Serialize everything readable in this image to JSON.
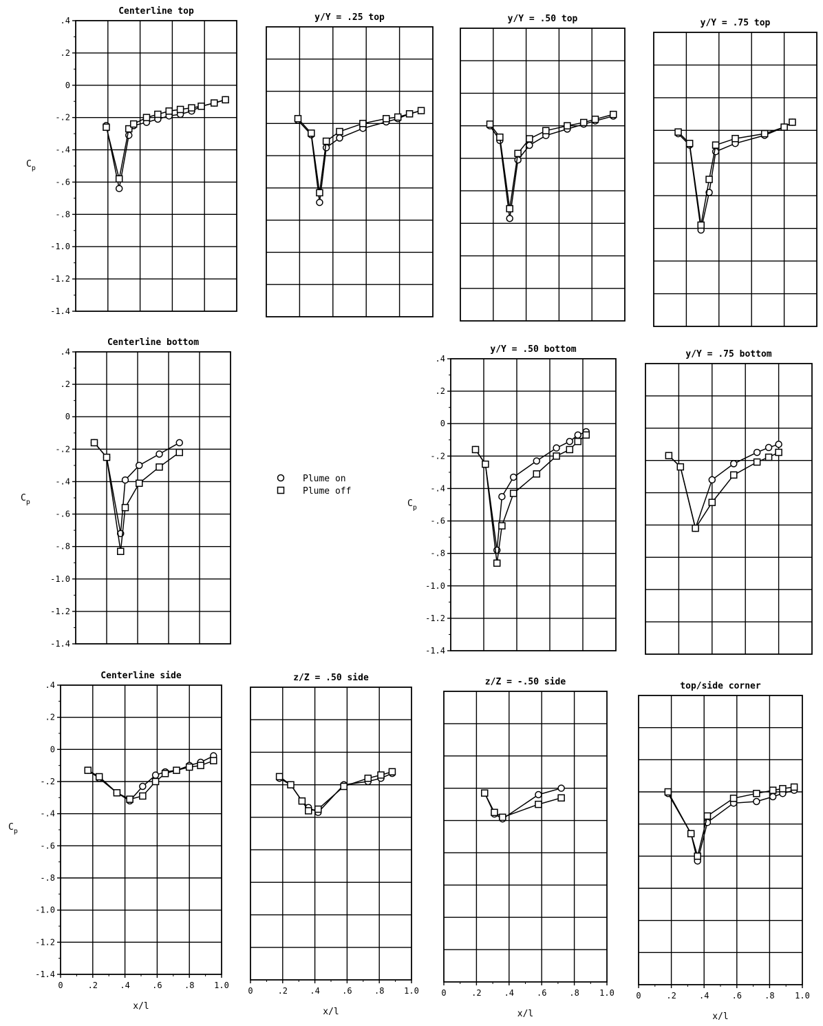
{
  "legend": [
    {
      "marker": "circle",
      "label": "Plume on"
    },
    {
      "marker": "square",
      "label": "Plume off"
    }
  ],
  "ylabel": "C_p",
  "xlabel": "x/l",
  "y_ticks": [
    ".4",
    ".2",
    "0",
    "-.2",
    "-.4",
    "-.6",
    "-.8",
    "-1.0",
    "-1.2",
    "-1.4"
  ],
  "x_ticks": [
    "0",
    ".2",
    ".4",
    ".6",
    ".8",
    "1.0"
  ],
  "chart_data": [
    {
      "type": "line",
      "title": "Centerline top",
      "xlim": [
        0,
        1
      ],
      "ylim": [
        -1.4,
        0.4
      ],
      "series": [
        {
          "name": "Plume on",
          "x": [
            0.19,
            0.27,
            0.33,
            0.36,
            0.44,
            0.51,
            0.58,
            0.65,
            0.72,
            0.78,
            0.86,
            0.93
          ],
          "y": [
            -0.25,
            -0.64,
            -0.31,
            -0.25,
            -0.23,
            -0.21,
            -0.19,
            -0.18,
            -0.16,
            -0.13,
            -0.11,
            -0.09
          ]
        },
        {
          "name": "Plume off",
          "x": [
            0.19,
            0.27,
            0.33,
            0.36,
            0.44,
            0.51,
            0.58,
            0.65,
            0.72,
            0.78,
            0.86,
            0.93
          ],
          "y": [
            -0.26,
            -0.58,
            -0.27,
            -0.24,
            -0.2,
            -0.18,
            -0.16,
            -0.15,
            -0.14,
            -0.13,
            -0.11,
            -0.09
          ]
        }
      ]
    },
    {
      "type": "line",
      "title": "y/Y = .25 top",
      "xlim": [
        0,
        1
      ],
      "ylim": [
        -1.4,
        0.4
      ],
      "series": [
        {
          "name": "Plume on",
          "x": [
            0.19,
            0.27,
            0.32,
            0.36,
            0.44,
            0.58,
            0.72,
            0.79,
            0.86,
            0.93
          ],
          "y": [
            -0.18,
            -0.27,
            -0.69,
            -0.35,
            -0.29,
            -0.23,
            -0.19,
            -0.17,
            -0.14,
            -0.12
          ]
        },
        {
          "name": "Plume off",
          "x": [
            0.19,
            0.27,
            0.32,
            0.36,
            0.44,
            0.58,
            0.72,
            0.79,
            0.86,
            0.93
          ],
          "y": [
            -0.17,
            -0.26,
            -0.63,
            -0.31,
            -0.25,
            -0.2,
            -0.17,
            -0.16,
            -0.14,
            -0.12
          ]
        }
      ]
    },
    {
      "type": "line",
      "title": "y/Y = .50 top",
      "xlim": [
        0,
        1
      ],
      "ylim": [
        -1.4,
        0.4
      ],
      "series": [
        {
          "name": "Plume on",
          "x": [
            0.18,
            0.24,
            0.3,
            0.35,
            0.42,
            0.52,
            0.65,
            0.75,
            0.82,
            0.93
          ],
          "y": [
            -0.2,
            -0.29,
            -0.77,
            -0.41,
            -0.32,
            -0.26,
            -0.22,
            -0.19,
            -0.17,
            -0.14
          ]
        },
        {
          "name": "Plume off",
          "x": [
            0.18,
            0.24,
            0.3,
            0.35,
            0.42,
            0.52,
            0.65,
            0.75,
            0.82,
            0.93
          ],
          "y": [
            -0.19,
            -0.27,
            -0.71,
            -0.37,
            -0.28,
            -0.23,
            -0.2,
            -0.18,
            -0.16,
            -0.13
          ]
        }
      ]
    },
    {
      "type": "line",
      "title": "y/Y = .75 top",
      "xlim": [
        0,
        1
      ],
      "ylim": [
        -1.4,
        0.4
      ],
      "series": [
        {
          "name": "Plume on",
          "x": [
            0.15,
            0.22,
            0.29,
            0.34,
            0.38,
            0.5,
            0.68,
            0.8,
            0.85
          ],
          "y": [
            -0.22,
            -0.29,
            -0.81,
            -0.58,
            -0.33,
            -0.28,
            -0.23,
            -0.18,
            -0.15
          ]
        },
        {
          "name": "Plume off",
          "x": [
            0.15,
            0.22,
            0.29,
            0.34,
            0.38,
            0.5,
            0.68,
            0.8,
            0.85
          ],
          "y": [
            -0.21,
            -0.28,
            -0.78,
            -0.5,
            -0.29,
            -0.25,
            -0.22,
            -0.18,
            -0.15
          ]
        }
      ]
    },
    {
      "type": "line",
      "title": "Centerline bottom",
      "xlim": [
        0,
        1
      ],
      "ylim": [
        -1.4,
        0.4
      ],
      "series": [
        {
          "name": "Plume on",
          "x": [
            0.12,
            0.2,
            0.29,
            0.32,
            0.41,
            0.54,
            0.67
          ],
          "y": [
            -0.16,
            -0.25,
            -0.72,
            -0.39,
            -0.3,
            -0.23,
            -0.16
          ]
        },
        {
          "name": "Plume off",
          "x": [
            0.12,
            0.2,
            0.29,
            0.32,
            0.41,
            0.54,
            0.67
          ],
          "y": [
            -0.16,
            -0.25,
            -0.83,
            -0.56,
            -0.41,
            -0.31,
            -0.22
          ]
        }
      ]
    },
    {
      "type": "line",
      "title": "y/Y = .50 bottom",
      "xlim": [
        0,
        1
      ],
      "ylim": [
        -1.4,
        0.4
      ],
      "series": [
        {
          "name": "Plume on",
          "x": [
            0.15,
            0.21,
            0.28,
            0.31,
            0.38,
            0.52,
            0.64,
            0.72,
            0.77,
            0.82
          ],
          "y": [
            -0.16,
            -0.25,
            -0.78,
            -0.45,
            -0.33,
            -0.23,
            -0.15,
            -0.11,
            -0.07,
            -0.05
          ]
        },
        {
          "name": "Plume off",
          "x": [
            0.15,
            0.21,
            0.28,
            0.31,
            0.38,
            0.52,
            0.64,
            0.72,
            0.77,
            0.82
          ],
          "y": [
            -0.16,
            -0.25,
            -0.86,
            -0.63,
            -0.43,
            -0.31,
            -0.2,
            -0.16,
            -0.11,
            -0.07
          ]
        }
      ]
    },
    {
      "type": "line",
      "title": "y/Y = .75 bottom",
      "xlim": [
        0,
        1
      ],
      "ylim": [
        -1.4,
        0.4
      ],
      "series": [
        {
          "name": "Plume on",
          "x": [
            0.14,
            0.21,
            0.3,
            0.4,
            0.53,
            0.67,
            0.74,
            0.8
          ],
          "y": [
            -0.17,
            -0.24,
            -0.62,
            -0.32,
            -0.22,
            -0.15,
            -0.12,
            -0.1
          ]
        },
        {
          "name": "Plume off",
          "x": [
            0.14,
            0.21,
            0.3,
            0.4,
            0.53,
            0.67,
            0.74,
            0.8
          ],
          "y": [
            -0.17,
            -0.24,
            -0.62,
            -0.46,
            -0.29,
            -0.21,
            -0.18,
            -0.15
          ]
        }
      ]
    },
    {
      "type": "line",
      "title": "Centerline side",
      "xlim": [
        0,
        1
      ],
      "ylim": [
        -1.4,
        0.4
      ],
      "series": [
        {
          "name": "Plume on",
          "x": [
            0.17,
            0.24,
            0.35,
            0.43,
            0.51,
            0.59,
            0.65,
            0.72,
            0.8,
            0.87,
            0.95
          ],
          "y": [
            -0.13,
            -0.18,
            -0.27,
            -0.32,
            -0.23,
            -0.16,
            -0.14,
            -0.13,
            -0.1,
            -0.08,
            -0.04
          ]
        },
        {
          "name": "Plume off",
          "x": [
            0.17,
            0.24,
            0.35,
            0.43,
            0.51,
            0.59,
            0.65,
            0.72,
            0.8,
            0.87,
            0.95
          ],
          "y": [
            -0.13,
            -0.17,
            -0.27,
            -0.31,
            -0.29,
            -0.2,
            -0.15,
            -0.13,
            -0.11,
            -0.1,
            -0.07
          ]
        }
      ]
    },
    {
      "type": "line",
      "title": "z/Z = .50 side",
      "xlim": [
        0,
        1
      ],
      "ylim": [
        -1.4,
        0.4
      ],
      "series": [
        {
          "name": "Plume on",
          "x": [
            0.18,
            0.25,
            0.32,
            0.36,
            0.42,
            0.58,
            0.73,
            0.81,
            0.88
          ],
          "y": [
            -0.16,
            -0.2,
            -0.3,
            -0.34,
            -0.37,
            -0.2,
            -0.18,
            -0.16,
            -0.13
          ]
        },
        {
          "name": "Plume off",
          "x": [
            0.18,
            0.25,
            0.32,
            0.36,
            0.42,
            0.58,
            0.73,
            0.81,
            0.88
          ],
          "y": [
            -0.15,
            -0.2,
            -0.3,
            -0.36,
            -0.35,
            -0.21,
            -0.16,
            -0.14,
            -0.12
          ]
        }
      ]
    },
    {
      "type": "line",
      "title": "z/Z = -.50 side",
      "xlim": [
        0,
        1
      ],
      "ylim": [
        -1.4,
        0.4
      ],
      "series": [
        {
          "name": "Plume on",
          "x": [
            0.25,
            0.31,
            0.36,
            0.58,
            0.72
          ],
          "y": [
            -0.23,
            -0.36,
            -0.39,
            -0.24,
            -0.2
          ]
        },
        {
          "name": "Plume off",
          "x": [
            0.25,
            0.31,
            0.36,
            0.58,
            0.72
          ],
          "y": [
            -0.23,
            -0.35,
            -0.38,
            -0.3,
            -0.26
          ]
        }
      ]
    },
    {
      "type": "line",
      "title": "top/side corner",
      "xlim": [
        0,
        1
      ],
      "ylim": [
        -1.4,
        0.4
      ],
      "series": [
        {
          "name": "Plume on",
          "x": [
            0.18,
            0.32,
            0.36,
            0.42,
            0.58,
            0.72,
            0.82,
            0.88,
            0.95
          ],
          "y": [
            -0.21,
            -0.46,
            -0.63,
            -0.39,
            -0.27,
            -0.26,
            -0.23,
            -0.21,
            -0.19
          ]
        },
        {
          "name": "Plume off",
          "x": [
            0.18,
            0.32,
            0.36,
            0.42,
            0.58,
            0.72,
            0.82,
            0.88,
            0.95
          ],
          "y": [
            -0.2,
            -0.46,
            -0.6,
            -0.35,
            -0.24,
            -0.21,
            -0.19,
            -0.18,
            -0.17
          ]
        }
      ]
    }
  ]
}
